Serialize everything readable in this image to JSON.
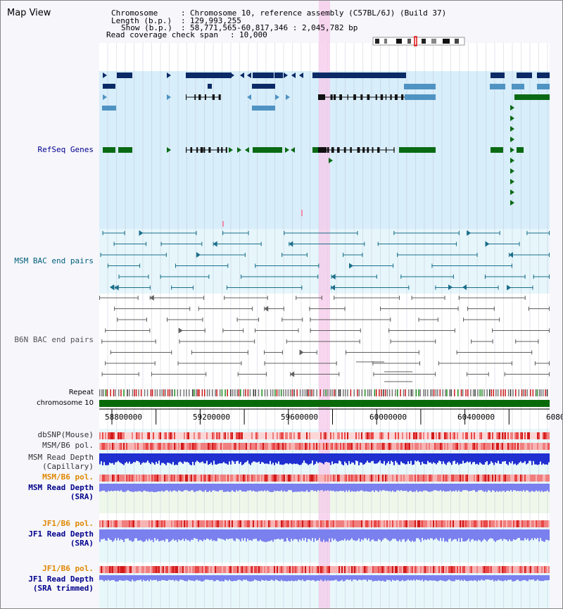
{
  "header": {
    "title": "Map View",
    "chromosome_key": "Chromosome",
    "chromosome_val": "Chromosome 10, reference assembly (C57BL/6J) (Build 37)",
    "length_key": "Length (b.p.)",
    "length_val": "129,993,255",
    "show_key": "Show (b.p.)",
    "show_val": "58,771,565-60,817,346 : 2,045,782 bp",
    "coverage_key": "Read coverage check span",
    "coverage_val": "10,000"
  },
  "tracks": {
    "refseq": "RefSeq Genes",
    "msm_bac": "MSM BAC end pairs",
    "b6n_bac": "B6N BAC end pairs",
    "repeat": "Repeat",
    "chromosome": "chromosome 10",
    "dbsnp": "dbSNP(Mouse)",
    "msm_b6_pol_1": "MSM/B6 pol.",
    "msm_depth_cap_1": "MSM Read Depth",
    "msm_depth_cap_2": "(Capillary)",
    "msm_b6_pol_2": "MSM/B6 pol.",
    "msm_depth_sra_1": "MSM Read Depth",
    "msm_depth_sra_2": "(SRA)",
    "jf1_b6_pol_1": "JF1/B6 pol.",
    "jf1_depth_sra_1": "JF1 Read Depth",
    "jf1_depth_sra_2": "(SRA)",
    "jf1_b6_pol_2": "JF1/B6 pol.",
    "jf1_depth_trim_1": "JF1 Read Depth",
    "jf1_depth_trim_2": "(SRA trimmed)"
  },
  "axis_ticks": [
    "58800000",
    "59200000",
    "59600000",
    "60000000",
    "60400000",
    "6080"
  ],
  "colors": {
    "refseq_bg": "#d8eefa",
    "msm_bg": "#e6f6fb",
    "gene_dark": "#0b2a66",
    "gene_light": "#4f93c2",
    "gene_green": "#0a6a14",
    "bac_msm": "#1a6e8a",
    "bac_b6n": "#606060",
    "highlight": "#f6c8ea",
    "chromosome": "#0a6a0a",
    "depth_dark": "#1f2fd0",
    "depth_light": "#7a80ee",
    "label_blue": "#00008b",
    "label_orange": "#e08800",
    "label_teal": "#005f7a"
  }
}
